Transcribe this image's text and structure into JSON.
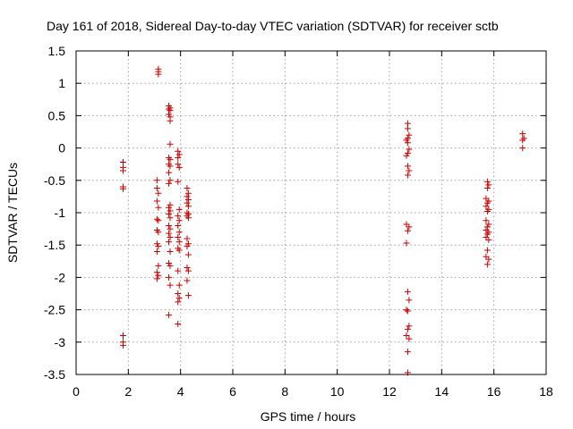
{
  "chart_data": {
    "type": "scatter",
    "title": "Day 161 of 2018, Sidereal Day-to-day VTEC variation (SDTVAR) for receiver sctb",
    "xlabel": "GPS time / hours",
    "ylabel": "SDTVAR / TECUs",
    "xlim": [
      0,
      18
    ],
    "ylim": [
      -3.5,
      1.5
    ],
    "xticks": [
      0,
      2,
      4,
      6,
      8,
      10,
      12,
      14,
      16,
      18
    ],
    "yticks": [
      -3.5,
      -3,
      -2.5,
      -2,
      -1.5,
      -1,
      -0.5,
      0,
      0.5,
      1,
      1.5
    ],
    "xtick_labels": [
      "0",
      "2",
      "4",
      "6",
      "8",
      "10",
      "12",
      "14",
      "16",
      "18"
    ],
    "ytick_labels": [
      "-3.5",
      "-3",
      "-2.5",
      "-2",
      "-1.5",
      "-1",
      "-0.5",
      "0",
      "0.5",
      "1",
      "1.5"
    ],
    "grid": true,
    "marker": "+",
    "color": "#cc0000",
    "series": [
      {
        "name": "SDTVAR",
        "points": [
          [
            1.8,
            -0.22
          ],
          [
            1.8,
            -0.3
          ],
          [
            1.8,
            -0.35
          ],
          [
            1.8,
            -0.6
          ],
          [
            1.8,
            -0.63
          ],
          [
            1.8,
            -2.9
          ],
          [
            1.8,
            -3.0
          ],
          [
            1.8,
            -3.05
          ],
          [
            3.15,
            1.22
          ],
          [
            3.15,
            1.18
          ],
          [
            3.15,
            1.14
          ],
          [
            3.1,
            -0.5
          ],
          [
            3.1,
            -0.62
          ],
          [
            3.15,
            -0.7
          ],
          [
            3.1,
            -0.82
          ],
          [
            3.15,
            -0.92
          ],
          [
            3.1,
            -1.1
          ],
          [
            3.15,
            -1.12
          ],
          [
            3.1,
            -1.27
          ],
          [
            3.15,
            -1.3
          ],
          [
            3.1,
            -1.48
          ],
          [
            3.15,
            -1.52
          ],
          [
            3.1,
            -1.6
          ],
          [
            3.15,
            -1.82
          ],
          [
            3.1,
            -1.92
          ],
          [
            3.15,
            -1.97
          ],
          [
            3.1,
            -2.02
          ],
          [
            3.55,
            0.65
          ],
          [
            3.6,
            0.62
          ],
          [
            3.55,
            0.6
          ],
          [
            3.6,
            0.58
          ],
          [
            3.55,
            0.52
          ],
          [
            3.6,
            0.48
          ],
          [
            3.6,
            0.42
          ],
          [
            3.6,
            0.06
          ],
          [
            3.55,
            -0.15
          ],
          [
            3.6,
            -0.18
          ],
          [
            3.55,
            -0.25
          ],
          [
            3.6,
            -0.28
          ],
          [
            3.55,
            -0.38
          ],
          [
            3.6,
            -0.5
          ],
          [
            3.55,
            -0.55
          ],
          [
            3.6,
            -0.88
          ],
          [
            3.55,
            -0.92
          ],
          [
            3.6,
            -0.97
          ],
          [
            3.55,
            -1.02
          ],
          [
            3.6,
            -1.08
          ],
          [
            3.55,
            -1.2
          ],
          [
            3.6,
            -1.25
          ],
          [
            3.55,
            -1.32
          ],
          [
            3.6,
            -1.38
          ],
          [
            3.55,
            -1.45
          ],
          [
            3.6,
            -1.6
          ],
          [
            3.55,
            -1.78
          ],
          [
            3.6,
            -1.82
          ],
          [
            3.55,
            -2.0
          ],
          [
            3.6,
            -2.12
          ],
          [
            3.55,
            -2.58
          ],
          [
            3.9,
            -0.05
          ],
          [
            3.95,
            -0.1
          ],
          [
            3.9,
            -0.15
          ],
          [
            3.9,
            -0.25
          ],
          [
            3.95,
            -0.3
          ],
          [
            3.9,
            -0.52
          ],
          [
            3.95,
            -0.95
          ],
          [
            3.9,
            -1.05
          ],
          [
            3.95,
            -1.12
          ],
          [
            3.9,
            -1.2
          ],
          [
            3.95,
            -1.3
          ],
          [
            3.9,
            -1.38
          ],
          [
            3.95,
            -1.45
          ],
          [
            3.9,
            -1.55
          ],
          [
            3.95,
            -1.58
          ],
          [
            3.9,
            -1.9
          ],
          [
            3.95,
            -2.12
          ],
          [
            3.9,
            -2.25
          ],
          [
            3.95,
            -2.32
          ],
          [
            3.9,
            -2.38
          ],
          [
            3.9,
            -2.72
          ],
          [
            4.25,
            -0.62
          ],
          [
            4.3,
            -0.7
          ],
          [
            4.25,
            -0.75
          ],
          [
            4.3,
            -0.8
          ],
          [
            4.25,
            -0.85
          ],
          [
            4.3,
            -0.9
          ],
          [
            4.25,
            -1.0
          ],
          [
            4.3,
            -1.02
          ],
          [
            4.25,
            -1.05
          ],
          [
            4.3,
            -1.08
          ],
          [
            4.25,
            -1.4
          ],
          [
            4.3,
            -1.48
          ],
          [
            4.25,
            -1.52
          ],
          [
            4.3,
            -1.65
          ],
          [
            4.25,
            -1.85
          ],
          [
            4.3,
            -1.9
          ],
          [
            4.25,
            -2.05
          ],
          [
            4.3,
            -2.28
          ],
          [
            12.7,
            0.38
          ],
          [
            12.7,
            0.3
          ],
          [
            12.75,
            0.2
          ],
          [
            12.7,
            0.15
          ],
          [
            12.65,
            0.12
          ],
          [
            12.7,
            0.08
          ],
          [
            12.75,
            -0.02
          ],
          [
            12.7,
            -0.08
          ],
          [
            12.65,
            -0.12
          ],
          [
            12.7,
            -0.28
          ],
          [
            12.75,
            -0.35
          ],
          [
            12.7,
            -0.42
          ],
          [
            12.65,
            -1.18
          ],
          [
            12.75,
            -1.22
          ],
          [
            12.7,
            -1.28
          ],
          [
            12.65,
            -1.47
          ],
          [
            12.7,
            -2.22
          ],
          [
            12.75,
            -2.35
          ],
          [
            12.65,
            -2.5
          ],
          [
            12.7,
            -2.52
          ],
          [
            12.75,
            -2.75
          ],
          [
            12.7,
            -2.8
          ],
          [
            12.65,
            -2.9
          ],
          [
            12.75,
            -2.95
          ],
          [
            12.7,
            -3.15
          ],
          [
            12.7,
            -3.47
          ],
          [
            15.75,
            -0.52
          ],
          [
            15.8,
            -0.57
          ],
          [
            15.75,
            -0.62
          ],
          [
            15.7,
            -0.78
          ],
          [
            15.8,
            -0.82
          ],
          [
            15.75,
            -0.85
          ],
          [
            15.7,
            -0.9
          ],
          [
            15.8,
            -0.95
          ],
          [
            15.75,
            -0.98
          ],
          [
            15.7,
            -1.12
          ],
          [
            15.8,
            -1.18
          ],
          [
            15.75,
            -1.22
          ],
          [
            15.7,
            -1.27
          ],
          [
            15.8,
            -1.3
          ],
          [
            15.75,
            -1.33
          ],
          [
            15.7,
            -1.38
          ],
          [
            15.8,
            -1.42
          ],
          [
            15.75,
            -1.58
          ],
          [
            15.7,
            -1.68
          ],
          [
            15.8,
            -1.72
          ],
          [
            15.75,
            -1.8
          ],
          [
            17.1,
            0.22
          ],
          [
            17.15,
            0.15
          ],
          [
            17.1,
            0.12
          ],
          [
            17.1,
            0.0
          ]
        ]
      }
    ]
  }
}
